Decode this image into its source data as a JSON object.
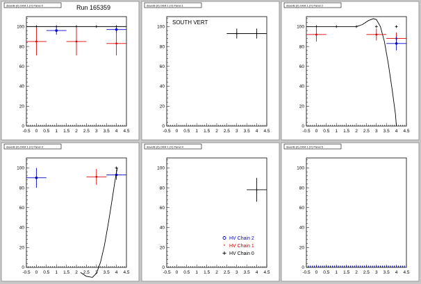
{
  "run_label": "Run 165359",
  "legend": {
    "entries": [
      {
        "label": "HV Chain 2",
        "color": "#0000cc",
        "marker": "circle"
      },
      {
        "label": "HV Chain 1",
        "color": "#cc0000",
        "marker": "star"
      },
      {
        "label": "HV Chain 0",
        "color": "#000000",
        "marker": "plus"
      }
    ]
  },
  "colors": {
    "chain0": "#000000",
    "chain1": "#dd0000",
    "chain2": "#0000cc",
    "pad_bg": "#ffffff",
    "canvas_bg": "#c8c8c8"
  },
  "chart_data": [
    {
      "type": "scatter",
      "title": "daverB (0) Orbit 1 (Y) Panel 0",
      "annotation": "",
      "xlim": [
        -0.5,
        4.5
      ],
      "ylim": [
        0,
        110
      ],
      "xticks": [
        "-0.5",
        "0",
        "0.5",
        "1",
        "1.5",
        "2",
        "2.5",
        "3",
        "3.5",
        "4",
        "4.5"
      ],
      "yticks": [
        "0",
        "20",
        "40",
        "60",
        "80",
        "100"
      ],
      "series": [
        {
          "key": "chain0",
          "points": [
            {
              "x": 0,
              "y": 100,
              "ex": 0,
              "ey": 0
            },
            {
              "x": 1,
              "y": 100,
              "ex": 0,
              "ey": 0
            },
            {
              "x": 2,
              "y": 100,
              "ex": 0,
              "ey": 0
            },
            {
              "x": 3,
              "y": 100,
              "ex": 0,
              "ey": 0
            },
            {
              "x": 4,
              "y": 100,
              "ex": 0,
              "ey": 0
            }
          ],
          "line": "flat",
          "line_range": [
            -0.5,
            4.5
          ]
        },
        {
          "key": "chain2",
          "points": [
            {
              "x": 1,
              "y": 96,
              "ex": 0.5,
              "ey": 4
            },
            {
              "x": 4,
              "y": 97,
              "ex": 0.5,
              "ey": 4
            }
          ]
        },
        {
          "key": "chain1",
          "points": [
            {
              "x": 0,
              "y": 85,
              "ex": 0.5,
              "ey": 14
            },
            {
              "x": 2,
              "y": 85,
              "ex": 0.5,
              "ey": 14
            },
            {
              "x": 4,
              "y": 83,
              "ex": 0.5,
              "ey": 12
            }
          ]
        }
      ]
    },
    {
      "type": "scatter",
      "title": "daverB (0) Orbit 1 (Y) Panel 1",
      "annotation": "SOUTH VERT",
      "xlim": [
        -0.5,
        4.5
      ],
      "ylim": [
        0,
        110
      ],
      "xticks": [
        "-0.5",
        "0",
        "0.5",
        "1",
        "1.5",
        "2",
        "2.5",
        "3",
        "3.5",
        "4",
        "4.5"
      ],
      "yticks": [
        "0",
        "20",
        "40",
        "60",
        "80",
        "100"
      ],
      "series": [
        {
          "key": "chain0",
          "points": [
            {
              "x": 3,
              "y": 93,
              "ex": 0.5,
              "ey": 5
            },
            {
              "x": 4,
              "y": 93,
              "ex": 0.5,
              "ey": 5
            }
          ],
          "line": "segment",
          "line_range": [
            2.5,
            4.5
          ]
        }
      ]
    },
    {
      "type": "scatter",
      "title": "daverB (0) Orbit 1 (Y) Panel 2",
      "annotation": "",
      "xlim": [
        -0.5,
        4.5
      ],
      "ylim": [
        0,
        110
      ],
      "xticks": [
        "-0.5",
        "0",
        "0.5",
        "1",
        "1.5",
        "2",
        "2.5",
        "3",
        "3.5",
        "4",
        "4.5"
      ],
      "yticks": [
        "0",
        "20",
        "40",
        "60",
        "80",
        "100"
      ],
      "series": [
        {
          "key": "chain0",
          "points": [
            {
              "x": 0,
              "y": 100,
              "ex": 0,
              "ey": 0
            },
            {
              "x": 1,
              "y": 100,
              "ex": 0,
              "ey": 0
            },
            {
              "x": 2,
              "y": 100,
              "ex": 0,
              "ey": 0
            },
            {
              "x": 3,
              "y": 100,
              "ex": 0,
              "ey": 0
            },
            {
              "x": 4,
              "y": 100,
              "ex": 0,
              "ey": 0
            }
          ],
          "line": "curve",
          "curve": [
            [
              -0.5,
              100
            ],
            [
              2,
              100
            ],
            [
              2.3,
              102
            ],
            [
              2.6,
              106
            ],
            [
              2.85,
              108
            ],
            [
              3.0,
              107
            ],
            [
              3.2,
              100
            ],
            [
              3.4,
              85
            ],
            [
              3.6,
              62
            ],
            [
              3.8,
              35
            ],
            [
              3.95,
              12
            ],
            [
              4.0,
              0
            ]
          ]
        },
        {
          "key": "chain1",
          "points": [
            {
              "x": 0,
              "y": 92,
              "ex": 0.5,
              "ey": 7
            },
            {
              "x": 3,
              "y": 92,
              "ex": 0.5,
              "ey": 6
            },
            {
              "x": 4,
              "y": 88,
              "ex": 0.5,
              "ey": 6
            }
          ]
        },
        {
          "key": "chain2",
          "points": [
            {
              "x": 4,
              "y": 83,
              "ex": 0.5,
              "ey": 7
            }
          ]
        }
      ]
    },
    {
      "type": "scatter",
      "title": "daverB (0) Orbit 1 (Y) Panel 3",
      "annotation": "",
      "xlim": [
        -0.5,
        4.5
      ],
      "ylim": [
        0,
        110
      ],
      "xticks": [
        "-0.5",
        "0",
        "0.5",
        "1",
        "1.5",
        "2",
        "2.5",
        "3",
        "3.5",
        "4",
        "4.5"
      ],
      "yticks": [
        "0",
        "20",
        "40",
        "60",
        "80",
        "100"
      ],
      "series": [
        {
          "key": "chain2",
          "points": [
            {
              "x": 0,
              "y": 90,
              "ex": 0.5,
              "ey": 10
            },
            {
              "x": 4,
              "y": 93,
              "ex": 0.5,
              "ey": 5
            }
          ]
        },
        {
          "key": "chain1",
          "points": [
            {
              "x": 3,
              "y": 91,
              "ex": 0.5,
              "ey": 8
            }
          ]
        },
        {
          "key": "chain0",
          "points": [
            {
              "x": 4,
              "y": 100,
              "ex": 0,
              "ey": 0
            }
          ],
          "line": "curve",
          "curve": [
            [
              2.2,
              -5
            ],
            [
              2.5,
              -9
            ],
            [
              2.8,
              -10
            ],
            [
              3.0,
              -6
            ],
            [
              3.2,
              5
            ],
            [
              3.4,
              22
            ],
            [
              3.6,
              45
            ],
            [
              3.8,
              70
            ],
            [
              3.95,
              90
            ],
            [
              4.05,
              100
            ]
          ]
        }
      ]
    },
    {
      "type": "scatter",
      "title": "daverB (0) Orbit 1 (Y) Panel 4",
      "annotation": "",
      "xlim": [
        -0.5,
        4.5
      ],
      "ylim": [
        0,
        110
      ],
      "xticks": [
        "-0.5",
        "0",
        "0.5",
        "1",
        "1.5",
        "2",
        "2.5",
        "3",
        "3.5",
        "4",
        "4.5"
      ],
      "yticks": [
        "0",
        "20",
        "40",
        "60",
        "80",
        "100"
      ],
      "legend": true,
      "series": [
        {
          "key": "chain0",
          "points": [
            {
              "x": 4,
              "y": 78,
              "ex": 0.5,
              "ey": 12
            }
          ]
        }
      ]
    },
    {
      "type": "scatter",
      "title": "daverB (0) Orbit 1 (Y) Panel 5",
      "annotation": "",
      "xlim": [
        -0.5,
        4.5
      ],
      "ylim": [
        0,
        110
      ],
      "xticks": [
        "-0.5",
        "0",
        "0.5",
        "1",
        "1.5",
        "2",
        "2.5",
        "3",
        "3.5",
        "4",
        "4.5"
      ],
      "yticks": [
        "0",
        "20",
        "40",
        "60",
        "80",
        "100"
      ],
      "baseline_dots": true,
      "series": []
    }
  ]
}
